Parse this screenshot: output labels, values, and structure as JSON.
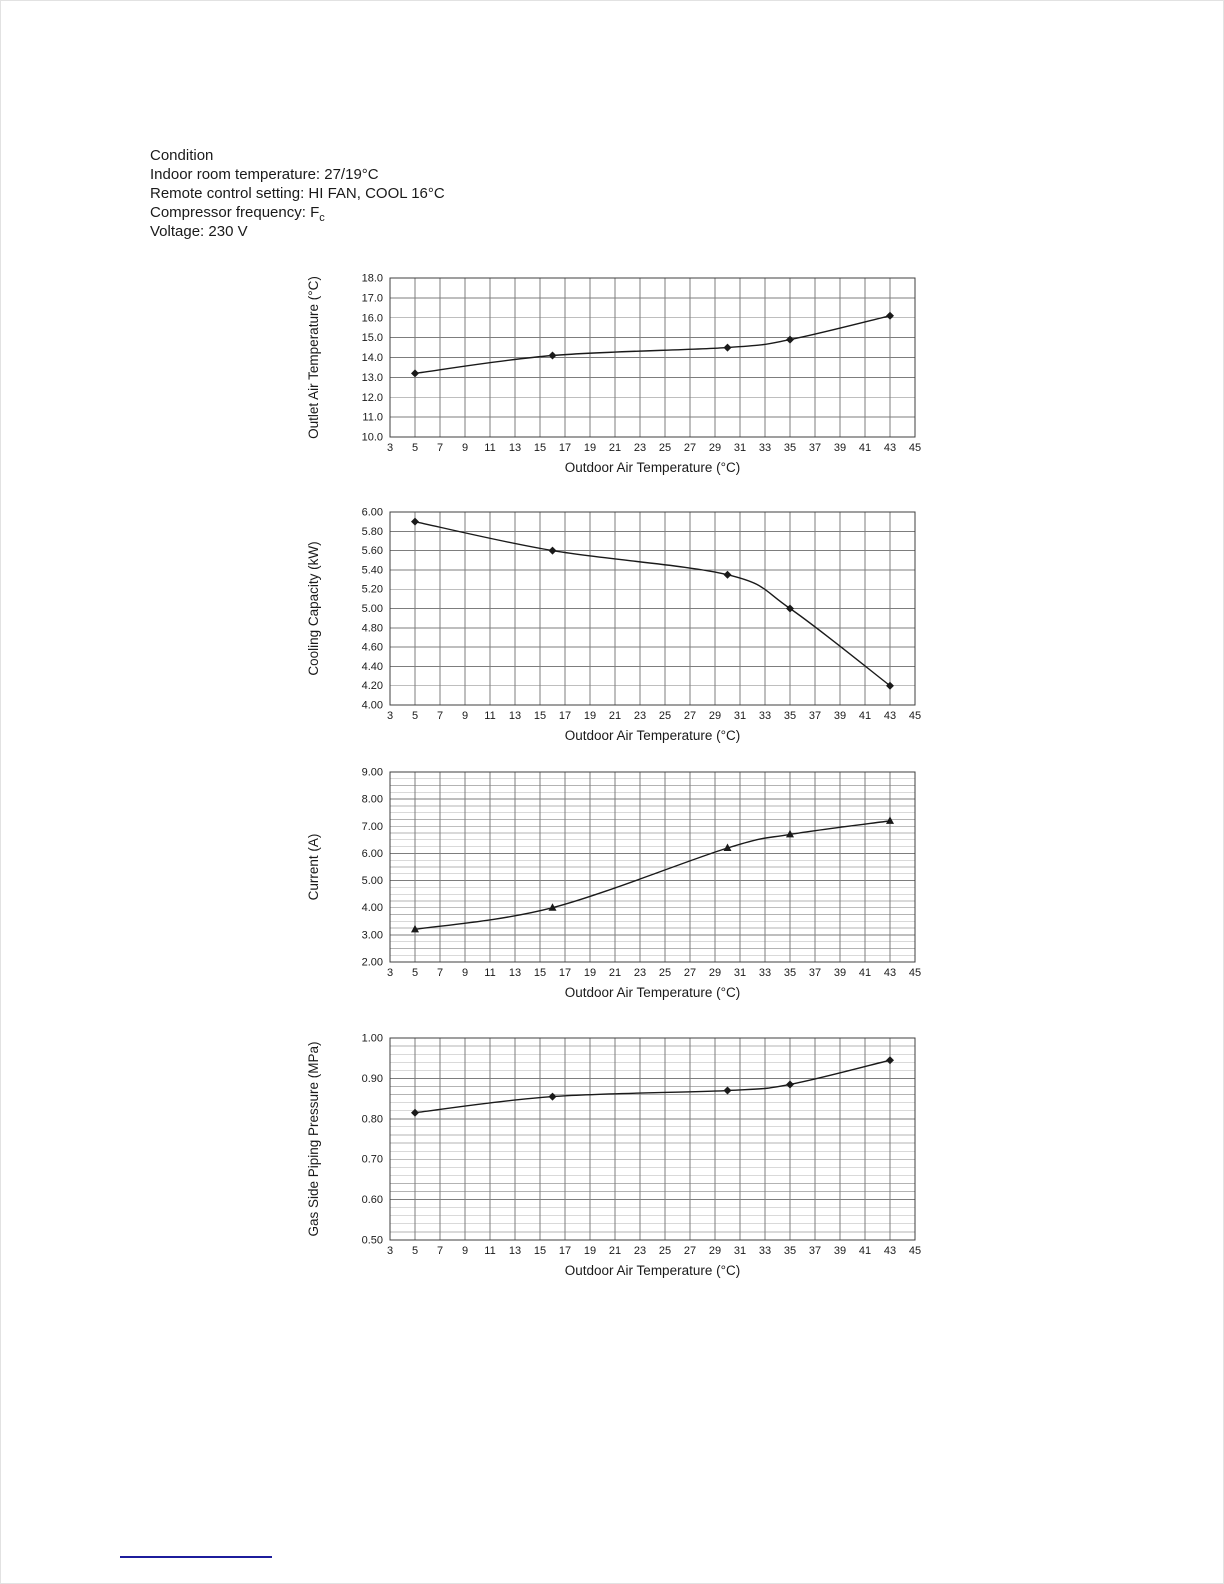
{
  "condition": {
    "title": "Condition",
    "lines": [
      {
        "text": "Indoor room temperature: 27/19°C"
      },
      {
        "text": "Remote control setting: HI FAN, COOL 16°C"
      },
      {
        "text": "Compressor frequency: F",
        "sub": "c"
      },
      {
        "text": "Voltage: 230 V"
      }
    ]
  },
  "chart_data": [
    {
      "type": "line",
      "title": "",
      "ylabel": "Outlet Air Temperature (°C)",
      "xlabel": "Outdoor  Air Temperature (°C)",
      "xlim": [
        3,
        45
      ],
      "xtick_step": 2,
      "ylim": [
        10.0,
        18.0
      ],
      "ytick_step": 1.0,
      "ytick_decimals": 1,
      "minor_ytick_step": null,
      "marker": "diamond",
      "grid": true,
      "points": {
        "x": [
          5,
          16,
          30,
          35,
          43
        ],
        "y": [
          13.2,
          14.1,
          14.5,
          14.9,
          16.1
        ]
      }
    },
    {
      "type": "line",
      "title": "",
      "ylabel": "Cooling Capacity (kW)",
      "xlabel": "Outdoor  Air Temperature (°C)",
      "xlim": [
        3,
        45
      ],
      "xtick_step": 2,
      "ylim": [
        4.0,
        6.0
      ],
      "ytick_step": 0.2,
      "ytick_decimals": 2,
      "minor_ytick_step": null,
      "marker": "diamond",
      "grid": true,
      "points": {
        "x": [
          5,
          16,
          30,
          35,
          43
        ],
        "y": [
          5.9,
          5.6,
          5.35,
          5.0,
          4.2
        ]
      }
    },
    {
      "type": "line",
      "title": "",
      "ylabel": "Current (A)",
      "xlabel": "Outdoor  Air Temperature (°C)",
      "xlim": [
        3,
        45
      ],
      "xtick_step": 2,
      "ylim": [
        2.0,
        9.0
      ],
      "ytick_step": 1.0,
      "ytick_decimals": 2,
      "minor_ytick_step": 0.25,
      "marker": "triangle",
      "grid": true,
      "points": {
        "x": [
          5,
          16,
          30,
          35,
          43
        ],
        "y": [
          3.2,
          4.0,
          6.2,
          6.7,
          7.2
        ]
      }
    },
    {
      "type": "line",
      "title": "",
      "ylabel": "Gas Side Piping Pressure (MPa)",
      "xlabel": "Outdoor  Air Temperature (°C)",
      "xlim": [
        3,
        45
      ],
      "xtick_step": 2,
      "ylim": [
        0.5,
        1.0
      ],
      "ytick_step": 0.1,
      "ytick_decimals": 2,
      "minor_ytick_step": 0.02,
      "marker": "diamond",
      "grid": true,
      "points": {
        "x": [
          5,
          16,
          30,
          35,
          43
        ],
        "y": [
          0.815,
          0.855,
          0.87,
          0.885,
          0.945
        ]
      }
    }
  ]
}
